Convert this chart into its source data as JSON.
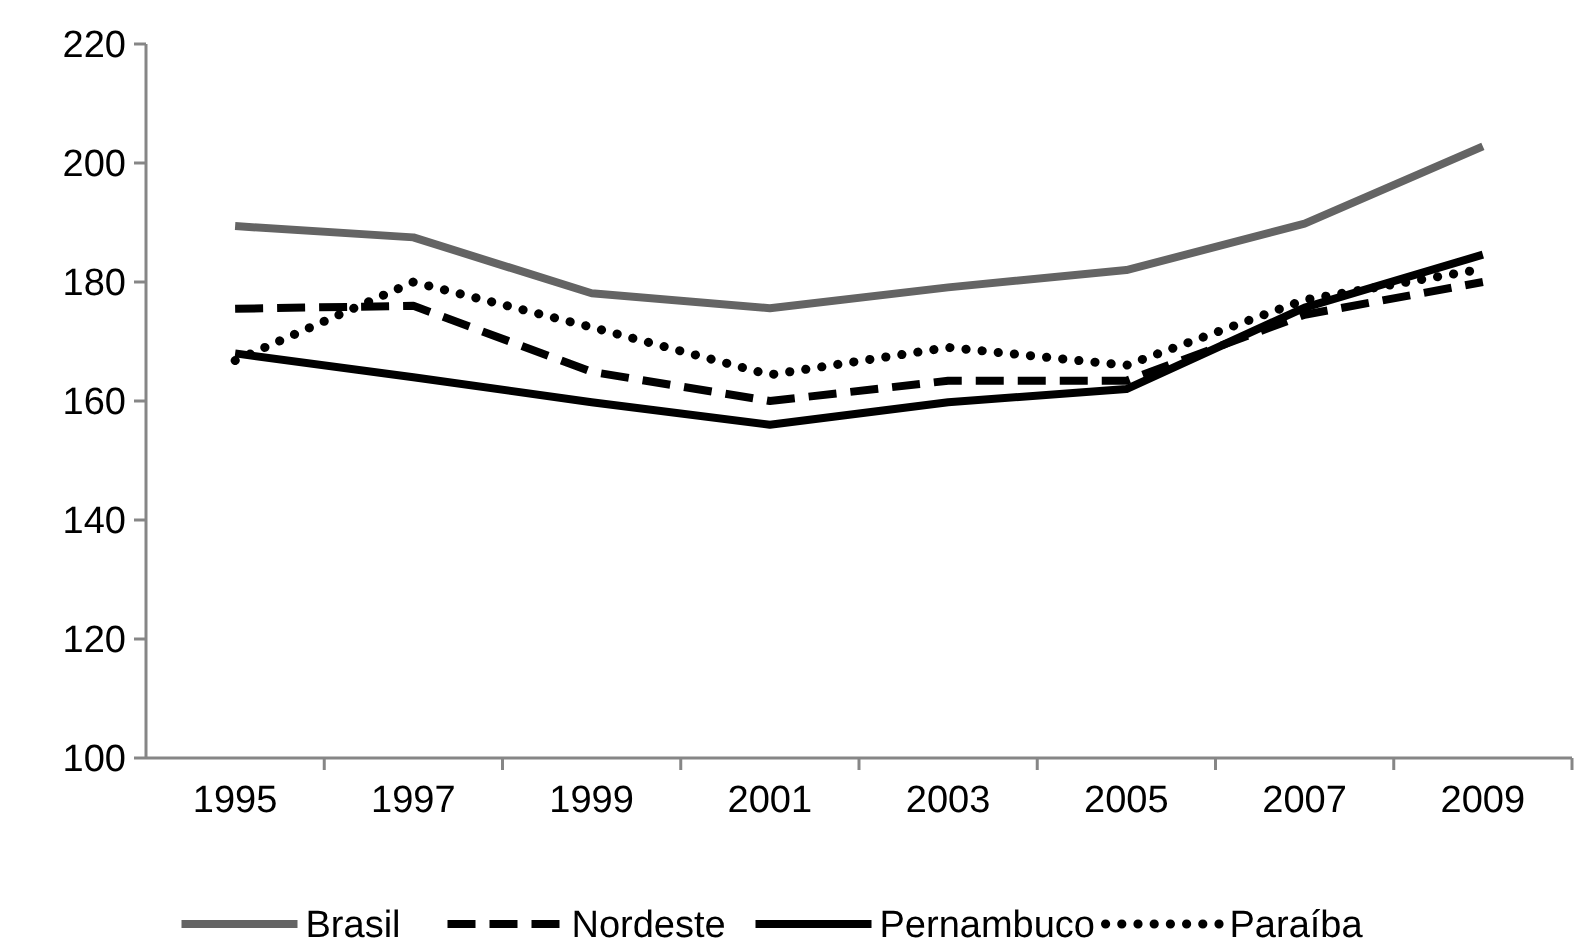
{
  "chart_data": {
    "type": "line",
    "categories": [
      "1995",
      "1997",
      "1999",
      "2001",
      "2003",
      "2005",
      "2007",
      "2009"
    ],
    "ylim": [
      100,
      220
    ],
    "yticks": [
      100,
      120,
      140,
      160,
      180,
      200,
      220
    ],
    "grid": false,
    "legend": "bottom",
    "marker": "none",
    "series": [
      {
        "name": "Brasil",
        "color": "#646464",
        "line_style": "solid",
        "values": [
          189.4,
          187.5,
          178.1,
          175.6,
          179.1,
          182,
          189.8,
          202.8
        ]
      },
      {
        "name": "Nordeste",
        "color": "#000000",
        "line_style": "dashed",
        "values": [
          175.5,
          176,
          164.9,
          160,
          163.4,
          163.4,
          174.5,
          180
        ]
      },
      {
        "name": "Pernambuco",
        "color": "#000000",
        "line_style": "solid",
        "values": [
          168,
          164,
          159.8,
          156,
          159.8,
          162,
          175.7,
          184.6
        ]
      },
      {
        "name": "Paraíba",
        "color": "#000000",
        "line_style": "dotted",
        "values": [
          166.8,
          180,
          172.4,
          164.4,
          169,
          166,
          177,
          182.2
        ]
      }
    ]
  }
}
